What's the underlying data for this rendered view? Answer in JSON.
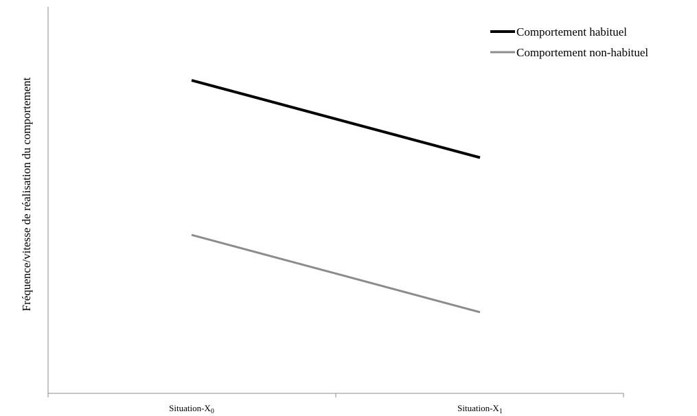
{
  "chart_data": {
    "type": "line",
    "categories": [
      "Situation-X",
      "Situation-X"
    ],
    "category_subscripts": [
      "0",
      "1"
    ],
    "series": [
      {
        "name": "Comportement habituel",
        "values": [
          0.81,
          0.61
        ],
        "color": "#000000"
      },
      {
        "name": "Comportement non-habituel",
        "values": [
          0.41,
          0.21
        ],
        "color": "#8c8c8c"
      }
    ],
    "title": "",
    "xlabel": "",
    "ylabel": "Fréquence/vitesse de réalisation du comportement",
    "ylim": [
      0,
      1
    ],
    "grid": false,
    "legend_position": "top-right"
  }
}
